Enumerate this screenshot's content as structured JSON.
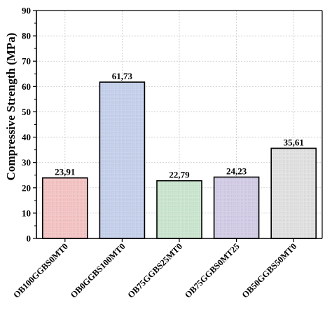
{
  "chart_data": {
    "type": "bar",
    "categories": [
      "OB100GGBS0MT0",
      "OB0GGBS100MT0",
      "OB75GGBS25MT0",
      "OB75GGBS0MT25",
      "OB50GGBS50MT0"
    ],
    "values": [
      23.91,
      61.73,
      22.79,
      24.23,
      35.61
    ],
    "value_labels": [
      "23,91",
      "61,73",
      "22,79",
      "24,23",
      "35,61"
    ],
    "bar_colors": [
      "#f2c9c9",
      "#c9d3ea",
      "#cfe6d3",
      "#d6d0e6",
      "#e3e3e3"
    ],
    "grid_colors": [
      "#f0a0a0",
      "#a9b9e3",
      "#a8d4b0",
      "#b8aedb",
      "#c8c8c8"
    ],
    "xlabel": "",
    "ylabel": "Compressive Strength (MPa)",
    "ylim": [
      0,
      90
    ],
    "yticks": [
      0,
      10,
      20,
      30,
      40,
      50,
      60,
      70,
      80,
      90
    ],
    "grid": true,
    "bar_edge_color": "#000000"
  }
}
